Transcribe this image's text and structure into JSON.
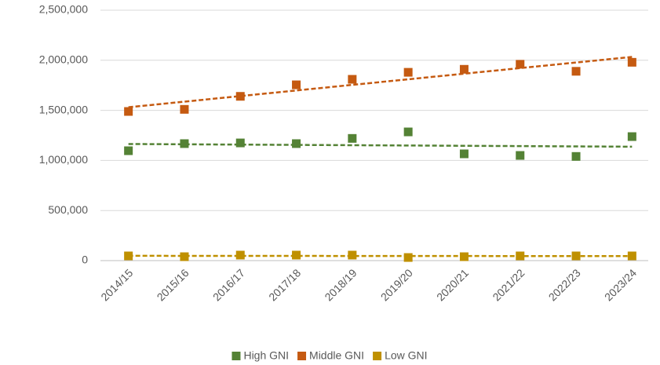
{
  "chart_data": {
    "type": "scatter",
    "categories": [
      "2014/15",
      "2015/16",
      "2016/17",
      "2017/18",
      "2018/19",
      "2019/20",
      "2020/21",
      "2021/22",
      "2022/23",
      "2023/24"
    ],
    "series": [
      {
        "name": "High GNI",
        "color": "#548235",
        "values": [
          1097000,
          1168000,
          1175000,
          1168000,
          1220000,
          1285000,
          1066000,
          1050000,
          1040000,
          1238000
        ]
      },
      {
        "name": "Middle GNI",
        "color": "#c55a11",
        "values": [
          1489000,
          1510000,
          1640000,
          1755000,
          1810000,
          1880000,
          1910000,
          1960000,
          1890000,
          1980000
        ]
      },
      {
        "name": "Low GNI",
        "color": "#bf9000",
        "values": [
          47000,
          39000,
          55000,
          55000,
          55000,
          31000,
          39000,
          47000,
          47000,
          47000
        ]
      }
    ],
    "trendline": "linear",
    "ylim": [
      0,
      2500000
    ],
    "yticks": [
      0,
      {
        "value": 500000,
        "label": "500,000"
      },
      {
        "value": 1000000,
        "label": "1,000,000"
      },
      {
        "value": 1500000,
        "label": "1,500,000"
      },
      {
        "value": 2000000,
        "label": "2,000,000"
      },
      {
        "value": 2500000,
        "label": "2,500,000"
      }
    ],
    "grid": true
  }
}
